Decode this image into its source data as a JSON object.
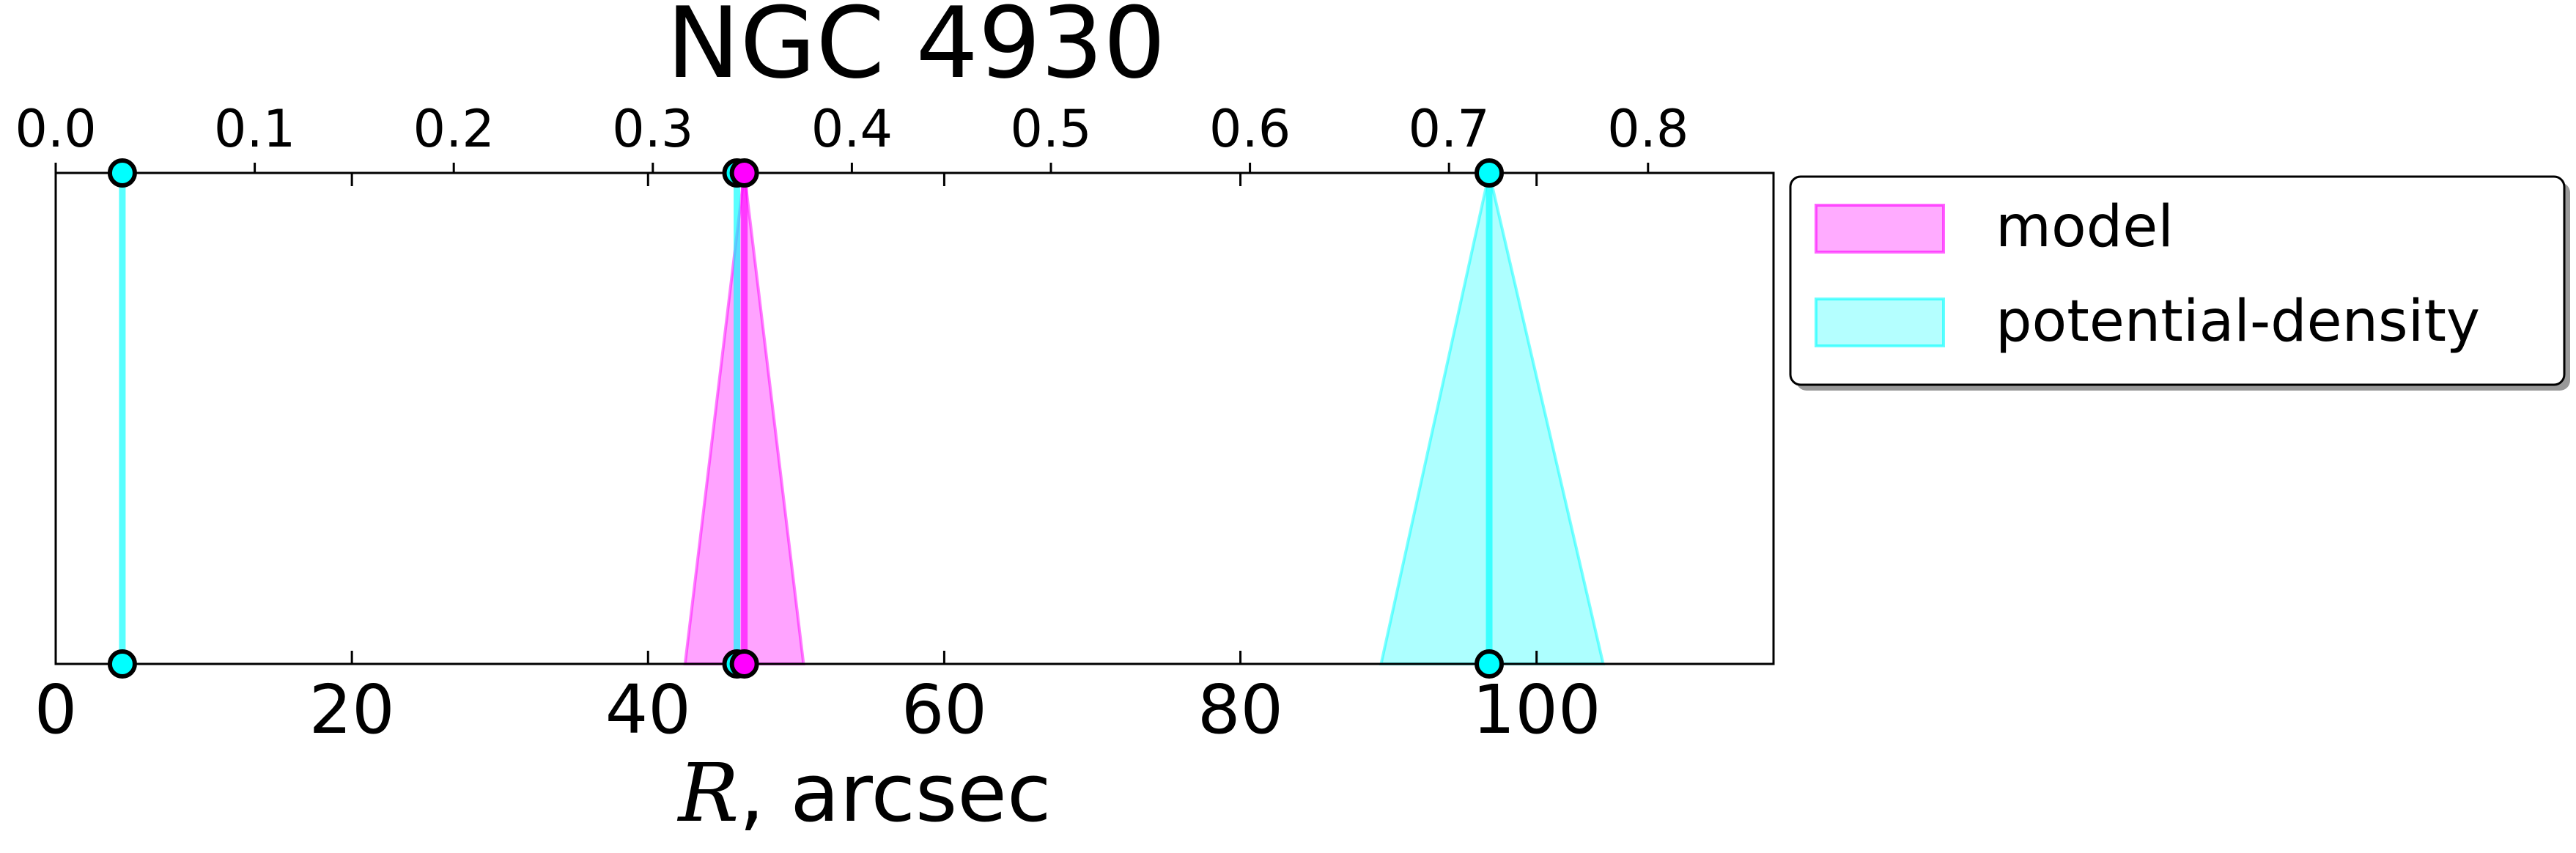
{
  "chart_data": {
    "type": "area",
    "title": "NGC 4930",
    "xlabel_italic": "R",
    "xlabel_rest": ", arcsec",
    "xlim": [
      0,
      116
    ],
    "ylim": [
      0,
      1
    ],
    "x_ticks": [
      "0",
      "20",
      "40",
      "60",
      "80",
      "100"
    ],
    "x_tick_values": [
      0,
      20,
      40,
      60,
      80,
      100
    ],
    "top_ticks": [
      "0.0",
      "0.1",
      "0.2",
      "0.3",
      "0.4",
      "0.5",
      "0.6",
      "0.7",
      "0.8"
    ],
    "top_tick_values": [
      0.0,
      0.1,
      0.2,
      0.3,
      0.4,
      0.5,
      0.6,
      0.7,
      0.8
    ],
    "top_axis_scale": 0.00744,
    "grid": false,
    "legend_position": "outside-right",
    "series": [
      {
        "name": "model",
        "color": "#ff00ff",
        "fill_color": "#ff66ff",
        "vertical_lines": [
          46.5
        ],
        "triangles": [
          {
            "apex": 46.5,
            "base_left": 42.5,
            "base_right": 50.5
          }
        ]
      },
      {
        "name": "potential-density",
        "color": "#00ffff",
        "fill_color": "#77ffff",
        "vertical_lines": [
          4.5,
          46.0,
          96.8
        ],
        "triangles": [
          {
            "apex": 96.8,
            "base_left": 89.5,
            "base_right": 104.5
          }
        ]
      }
    ],
    "markers_top": [
      {
        "x": 4.5,
        "color": "#00ffff"
      },
      {
        "x": 46.0,
        "color": "#00ffff"
      },
      {
        "x": 46.5,
        "color": "#ff00ff"
      },
      {
        "x": 96.8,
        "color": "#00ffff"
      }
    ],
    "markers_bottom": [
      {
        "x": 4.5,
        "color": "#00ffff"
      },
      {
        "x": 46.0,
        "color": "#00ffff"
      },
      {
        "x": 46.5,
        "color": "#ff00ff"
      },
      {
        "x": 96.8,
        "color": "#00ffff"
      }
    ]
  }
}
